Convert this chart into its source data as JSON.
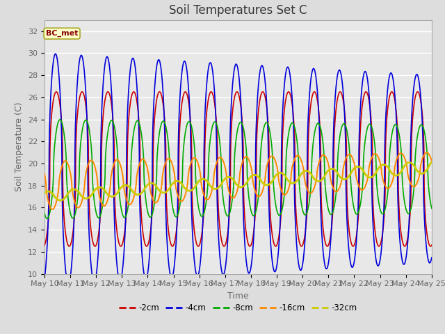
{
  "title": "Soil Temperatures Set C",
  "xlabel": "Time",
  "ylabel": "Soil Temperature (C)",
  "ylim": [
    10,
    33
  ],
  "yticks": [
    10,
    12,
    14,
    16,
    18,
    20,
    22,
    24,
    26,
    28,
    30,
    32
  ],
  "x_start_day": 10,
  "x_end_day": 25,
  "xtick_days": [
    10,
    11,
    12,
    13,
    14,
    15,
    16,
    17,
    18,
    19,
    20,
    21,
    22,
    23,
    24,
    25
  ],
  "series_order": [
    "-2cm",
    "-4cm",
    "-8cm",
    "-16cm",
    "-32cm"
  ],
  "colors": {
    "-2cm": "#cc0000",
    "-4cm": "#0000dd",
    "-8cm": "#00aa00",
    "-16cm": "#ff8800",
    "-32cm": "#cccc00"
  },
  "linewidths": {
    "-2cm": 1.2,
    "-4cm": 1.2,
    "-8cm": 1.2,
    "-16cm": 1.4,
    "-32cm": 2.0
  },
  "annotation_text": "BC_met",
  "background_color": "#dddddd",
  "plot_bg_color": "#e8e8e8",
  "grid_color": "#ffffff",
  "title_fontsize": 12,
  "label_fontsize": 9,
  "tick_fontsize": 8,
  "tick_color": "#666666"
}
